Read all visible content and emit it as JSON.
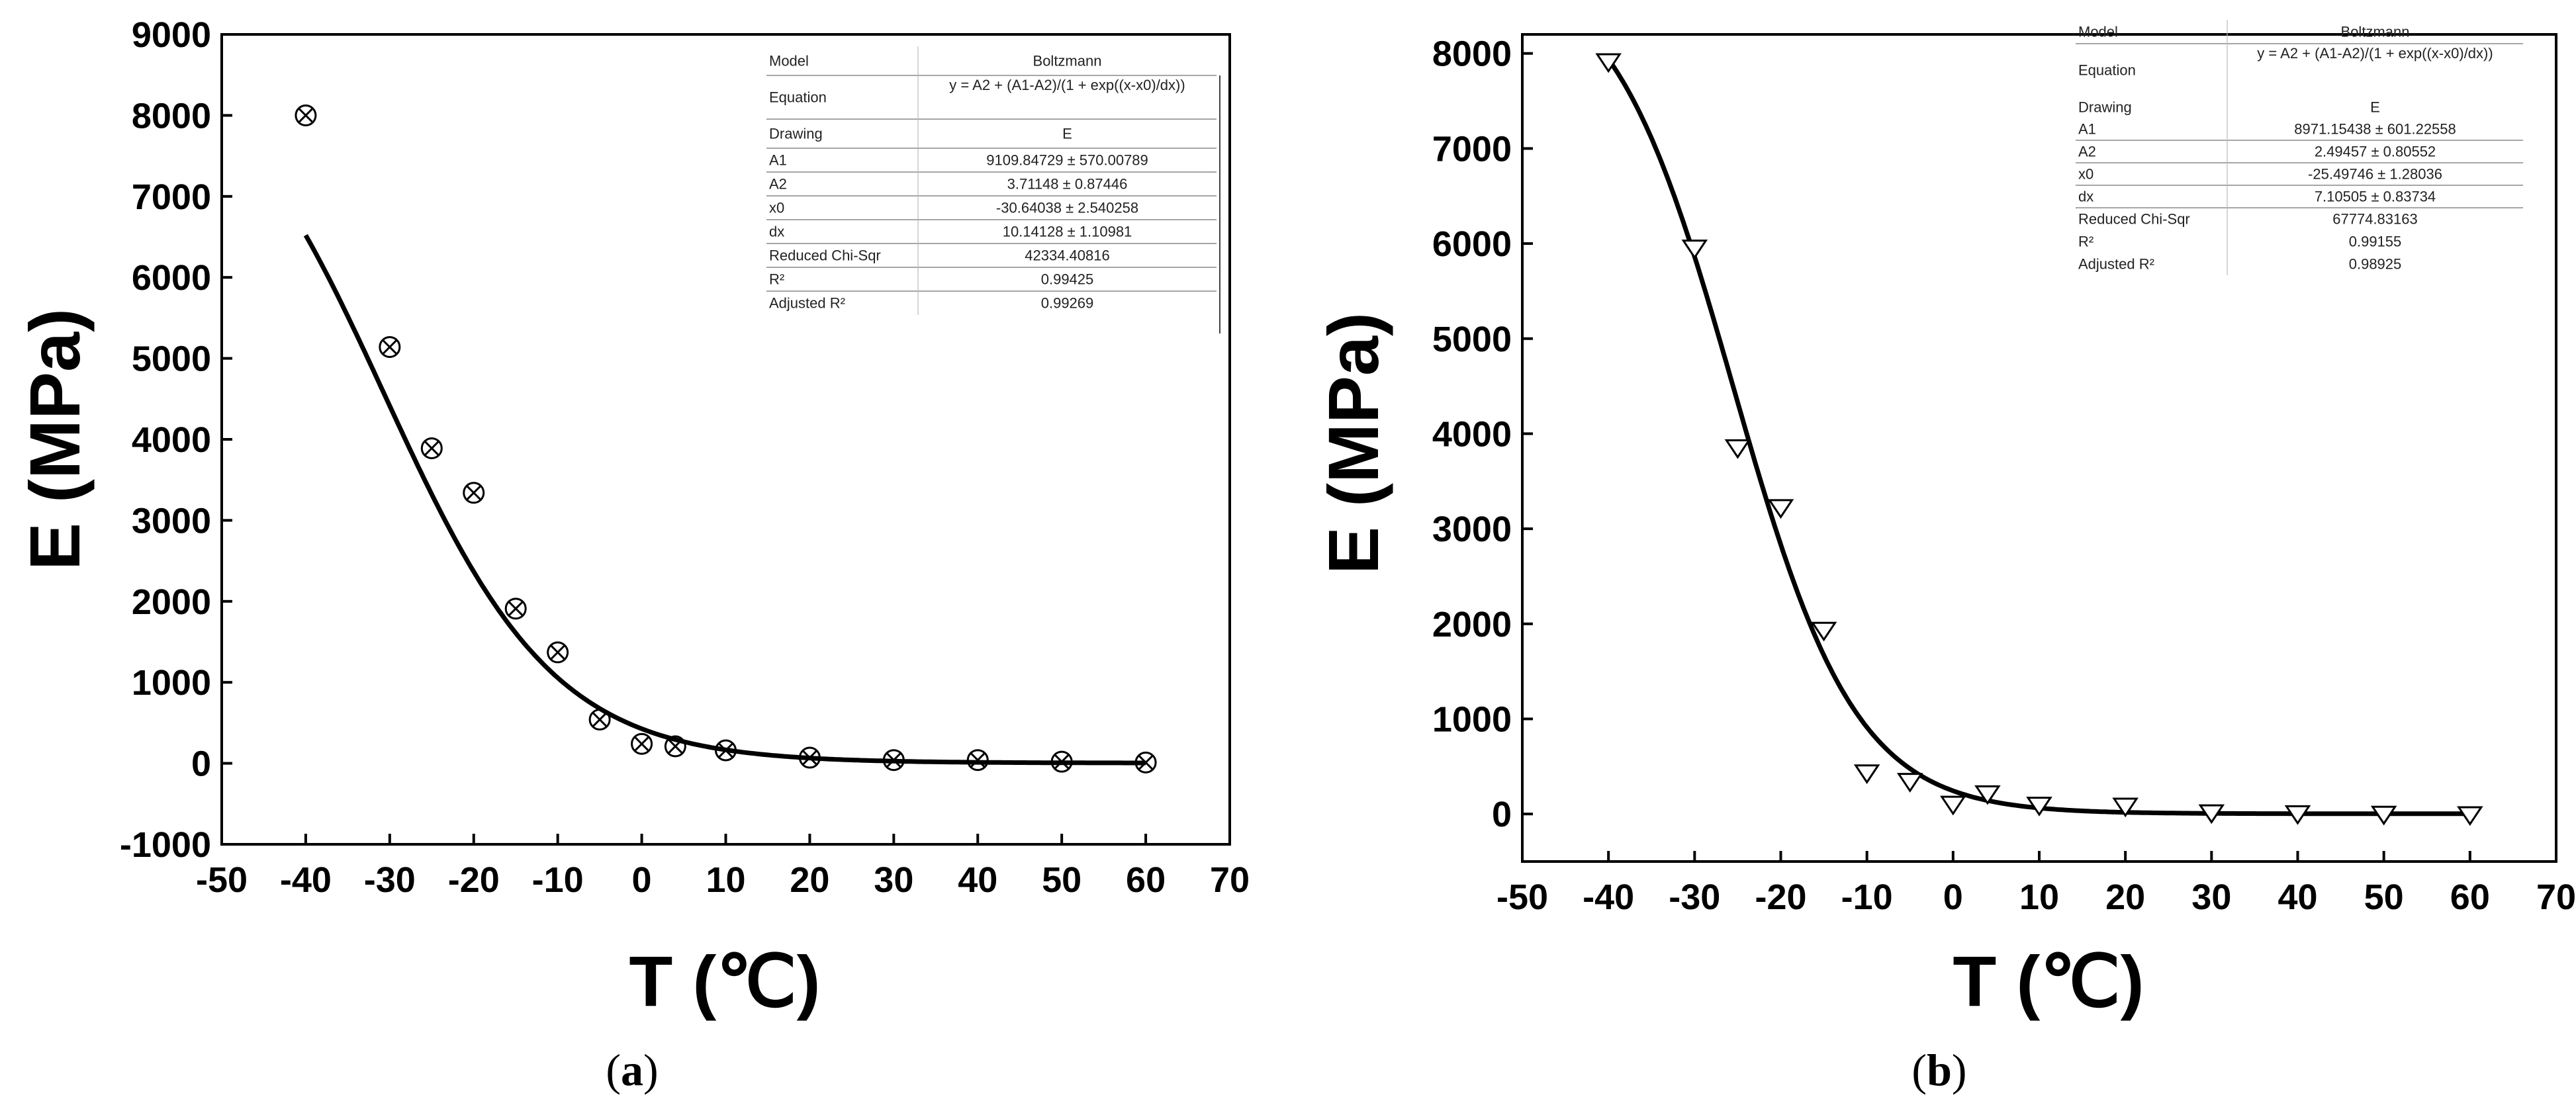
{
  "chart_data": [
    {
      "id": "a",
      "type": "scatter",
      "caption_letter": "a",
      "xlabel": "T (℃)",
      "ylabel": "E (MPa)",
      "xlim": [
        -50,
        70
      ],
      "ylim": [
        -1000,
        9000
      ],
      "xticks": [
        -50,
        -40,
        -30,
        -20,
        -10,
        0,
        10,
        20,
        30,
        40,
        50,
        60,
        70
      ],
      "yticks": [
        -1000,
        0,
        1000,
        2000,
        3000,
        4000,
        5000,
        6000,
        7000,
        8000,
        9000
      ],
      "marker": "circle-x",
      "points": [
        {
          "x": -40,
          "y": 8000
        },
        {
          "x": -30,
          "y": 5140
        },
        {
          "x": -25,
          "y": 3890
        },
        {
          "x": -20,
          "y": 3340
        },
        {
          "x": -15,
          "y": 1910
        },
        {
          "x": -10,
          "y": 1370
        },
        {
          "x": -5,
          "y": 540
        },
        {
          "x": 0,
          "y": 240
        },
        {
          "x": 4,
          "y": 210
        },
        {
          "x": 10,
          "y": 160
        },
        {
          "x": 20,
          "y": 70
        },
        {
          "x": 30,
          "y": 40
        },
        {
          "x": 40,
          "y": 40
        },
        {
          "x": 50,
          "y": 20
        },
        {
          "x": 60,
          "y": 10
        }
      ],
      "fit": {
        "model": "Boltzmann",
        "A1": 9109.84729,
        "A2": 3.71148,
        "x0": -30.64038,
        "dx": 10.14128,
        "x_range": [
          -40,
          60
        ]
      },
      "table": [
        {
          "k": "Model",
          "v": "Boltzmann"
        },
        {
          "k": "Equation",
          "v": "y = A2 + (A1-A2)/(1 + exp((x-x0)/dx))"
        },
        {
          "k": "Drawing",
          "v": "E"
        },
        {
          "k": "A1",
          "v": "9109.84729 ± 570.00789"
        },
        {
          "k": "A2",
          "v": "3.71148 ± 0.87446"
        },
        {
          "k": "x0",
          "v": "-30.64038 ± 2.540258"
        },
        {
          "k": "dx",
          "v": "10.14128 ± 1.10981"
        },
        {
          "k": "Reduced Chi-Sqr",
          "v": "42334.40816"
        },
        {
          "k": "R²",
          "v": "0.99425"
        },
        {
          "k": "Adjusted R²",
          "v": "0.99269"
        }
      ]
    },
    {
      "id": "b",
      "type": "scatter",
      "caption_letter": "b",
      "xlabel": "T (℃)",
      "ylabel": "E (MPa)",
      "xlim": [
        -50,
        70
      ],
      "ylim": [
        -500,
        8200
      ],
      "xticks": [
        -50,
        -40,
        -30,
        -20,
        -10,
        0,
        10,
        20,
        30,
        40,
        50,
        60,
        70
      ],
      "yticks": [
        0,
        1000,
        2000,
        3000,
        4000,
        5000,
        6000,
        7000,
        8000
      ],
      "marker": "triangle-down",
      "points": [
        {
          "x": -40,
          "y": 7920
        },
        {
          "x": -30,
          "y": 5960
        },
        {
          "x": -25,
          "y": 3860
        },
        {
          "x": -20,
          "y": 3230
        },
        {
          "x": -15,
          "y": 1940
        },
        {
          "x": -10,
          "y": 440
        },
        {
          "x": -5,
          "y": 350
        },
        {
          "x": 0,
          "y": 110
        },
        {
          "x": 4,
          "y": 220
        },
        {
          "x": 10,
          "y": 100
        },
        {
          "x": 20,
          "y": 90
        },
        {
          "x": 30,
          "y": 20
        },
        {
          "x": 40,
          "y": 10
        },
        {
          "x": 50,
          "y": 5
        },
        {
          "x": 60,
          "y": 0
        }
      ],
      "fit": {
        "model": "Boltzmann",
        "A1": 8971.15438,
        "A2": 2.49457,
        "x0": -25.49746,
        "dx": 7.10505,
        "x_range": [
          -40,
          60
        ]
      },
      "table": [
        {
          "k": "Model",
          "v": "Boltzmann"
        },
        {
          "k": "Equation",
          "v": "y = A2 + (A1-A2)/(1 + exp((x-x0)/dx))"
        },
        {
          "k": "Drawing",
          "v": "E"
        },
        {
          "k": "A1",
          "v": "8971.15438 ± 601.22558"
        },
        {
          "k": "A2",
          "v": "2.49457 ± 0.80552"
        },
        {
          "k": "x0",
          "v": "-25.49746 ± 1.28036"
        },
        {
          "k": "dx",
          "v": "7.10505 ± 0.83734"
        },
        {
          "k": "Reduced Chi-Sqr",
          "v": "67774.83163"
        },
        {
          "k": "R²",
          "v": "0.99155"
        },
        {
          "k": "Adjusted R²",
          "v": "0.98925"
        }
      ]
    }
  ]
}
